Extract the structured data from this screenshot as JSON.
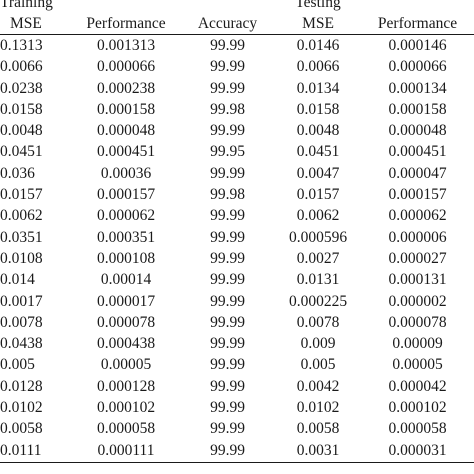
{
  "groups": {
    "training": "Training",
    "testing": "Testing"
  },
  "columns": [
    "MSE",
    "Performance",
    "Accuracy",
    "MSE",
    "Performance"
  ],
  "rows": [
    [
      "0.1313",
      "0.001313",
      "99.99",
      "0.0146",
      "0.000146"
    ],
    [
      "0.0066",
      "0.000066",
      "99.99",
      "0.0066",
      "0.000066"
    ],
    [
      "0.0238",
      "0.000238",
      "99.99",
      "0.0134",
      "0.000134"
    ],
    [
      "0.0158",
      "0.000158",
      "99.98",
      "0.0158",
      "0.000158"
    ],
    [
      "0.0048",
      "0.000048",
      "99.99",
      "0.0048",
      "0.000048"
    ],
    [
      "0.0451",
      "0.000451",
      "99.95",
      "0.0451",
      "0.000451"
    ],
    [
      "0.036",
      "0.00036",
      "99.99",
      "0.0047",
      "0.000047"
    ],
    [
      "0.0157",
      "0.000157",
      "99.98",
      "0.0157",
      "0.000157"
    ],
    [
      "0.0062",
      "0.000062",
      "99.99",
      "0.0062",
      "0.000062"
    ],
    [
      "0.0351",
      "0.000351",
      "99.99",
      "0.000596",
      "0.000006"
    ],
    [
      "0.0108",
      "0.000108",
      "99.99",
      "0.0027",
      "0.000027"
    ],
    [
      "0.014",
      "0.00014",
      "99.99",
      "0.0131",
      "0.000131"
    ],
    [
      "0.0017",
      "0.000017",
      "99.99",
      "0.000225",
      "0.000002"
    ],
    [
      "0.0078",
      "0.000078",
      "99.99",
      "0.0078",
      "0.000078"
    ],
    [
      "0.0438",
      "0.000438",
      "99.99",
      "0.009",
      "0.00009"
    ],
    [
      "0.005",
      "0.00005",
      "99.99",
      "0.005",
      "0.00005"
    ],
    [
      "0.0128",
      "0.000128",
      "99.99",
      "0.0042",
      "0.000042"
    ],
    [
      "0.0102",
      "0.000102",
      "99.99",
      "0.0102",
      "0.000102"
    ],
    [
      "0.0058",
      "0.000058",
      "99.99",
      "0.0058",
      "0.000058"
    ],
    [
      "0.0111",
      "0.000111",
      "99.99",
      "0.0031",
      "0.000031"
    ]
  ]
}
